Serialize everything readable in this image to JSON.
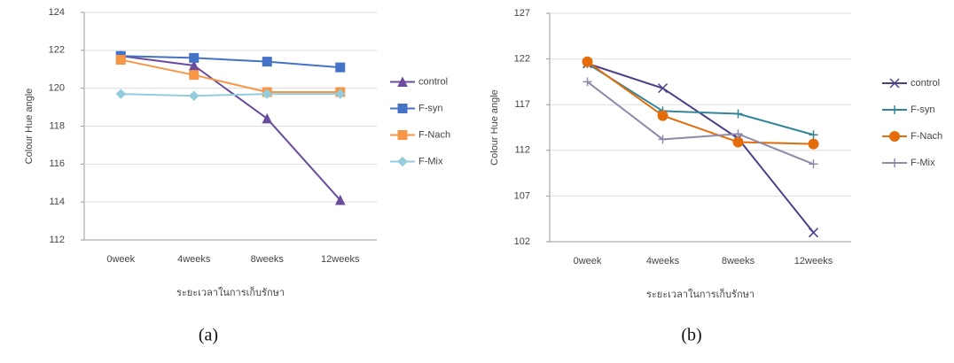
{
  "chart_data": [
    {
      "type": "line",
      "caption": "(a)",
      "y_label": "Colour Hue angle",
      "x_label": "ระยะเวลาในการเก็บรักษา",
      "categories": [
        "0week",
        "4weeks",
        "8weeks",
        "12weeks"
      ],
      "ylim": [
        112,
        124
      ],
      "yticks": [
        112,
        114,
        116,
        118,
        120,
        122,
        124
      ],
      "grid": true,
      "legend": "right",
      "series": [
        {
          "name": "control",
          "color": "#6a4c9c",
          "marker": "triangle",
          "values": [
            121.7,
            121.2,
            118.4,
            114.1
          ]
        },
        {
          "name": "F-syn",
          "color": "#4472c4",
          "marker": "square",
          "values": [
            121.7,
            121.6,
            121.4,
            121.1
          ]
        },
        {
          "name": "F-Nach",
          "color": "#f79646",
          "marker": "square",
          "values": [
            121.5,
            120.7,
            119.8,
            119.8
          ]
        },
        {
          "name": "F-Mix",
          "color": "#93cddd",
          "marker": "diamond",
          "values": [
            119.7,
            119.6,
            119.7,
            119.7
          ]
        }
      ]
    },
    {
      "type": "line",
      "caption": "(b)",
      "y_label": "Colour Hue angle",
      "x_label": "ระยะเวลาในการเก็บรักษา",
      "categories": [
        "0week",
        "4weeks",
        "8weeks",
        "12weeks"
      ],
      "ylim": [
        102,
        127
      ],
      "yticks": [
        102,
        107,
        112,
        117,
        122,
        127
      ],
      "grid": true,
      "legend": "right",
      "series": [
        {
          "name": "control",
          "color": "#4b3f8c",
          "marker": "x",
          "values": [
            121.5,
            118.8,
            113.3,
            103.0
          ]
        },
        {
          "name": "F-syn",
          "color": "#31859b",
          "marker": "plus",
          "values": [
            121.5,
            116.3,
            116.0,
            113.7
          ]
        },
        {
          "name": "F-Nach",
          "color": "#e46c0a",
          "marker": "circle",
          "values": [
            121.7,
            115.8,
            112.9,
            112.7
          ]
        },
        {
          "name": "F-Mix",
          "color": "#8c8ca8",
          "marker": "plus",
          "values": [
            119.5,
            113.2,
            113.8,
            110.5
          ]
        }
      ]
    }
  ]
}
